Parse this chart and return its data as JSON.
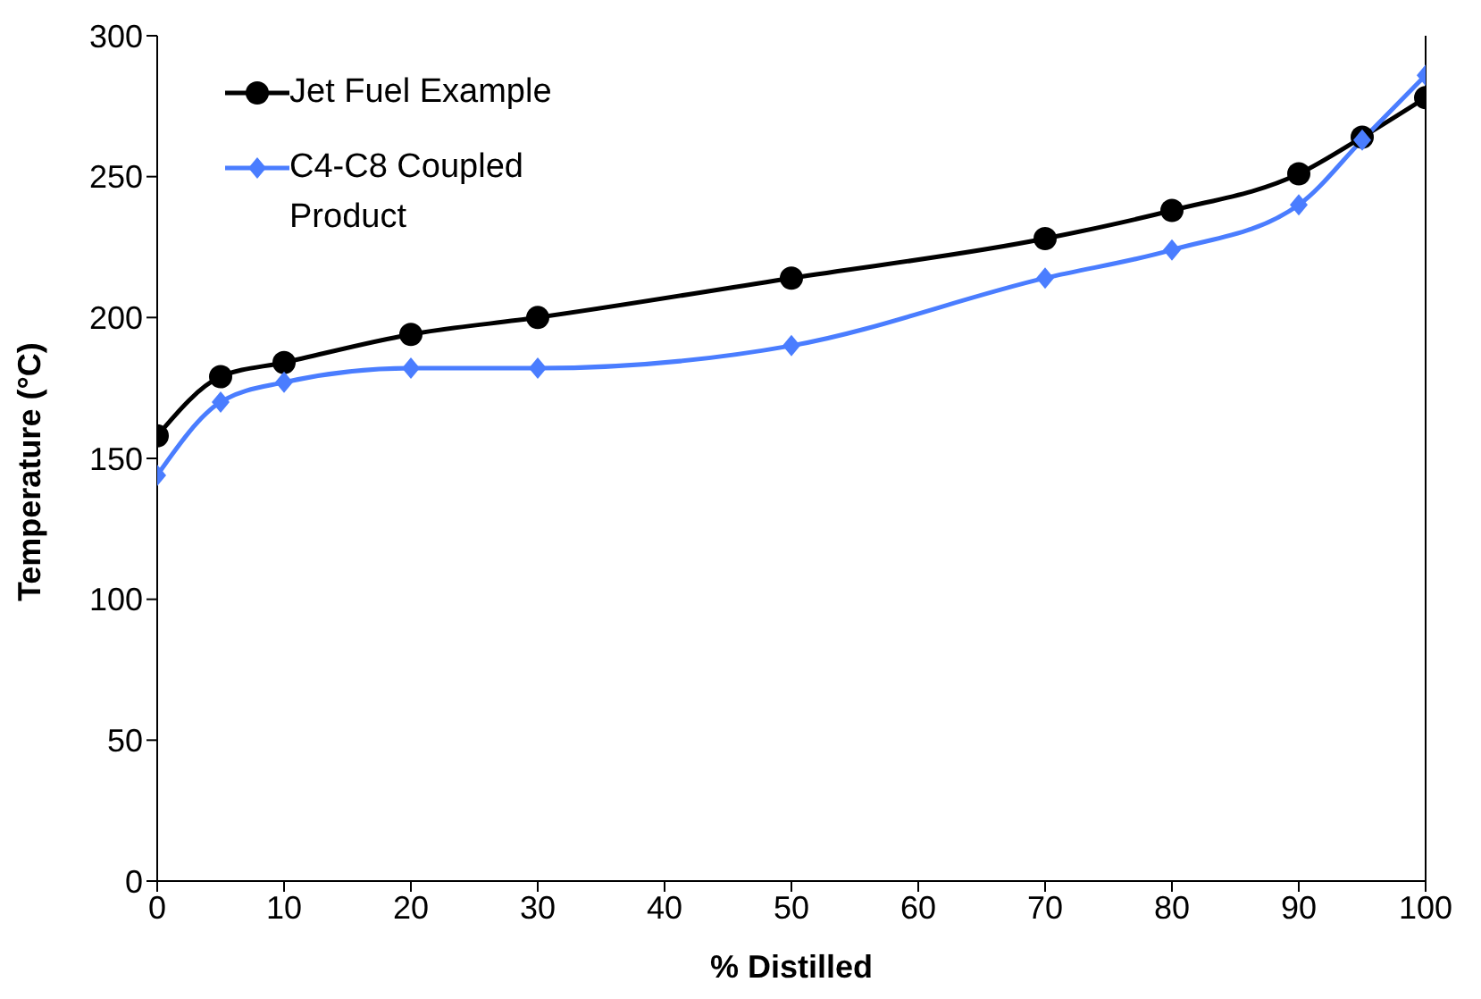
{
  "chart_data": {
    "type": "line",
    "xlabel": "% Distilled",
    "ylabel": "Temperature (°C)",
    "x": [
      0,
      5,
      10,
      20,
      30,
      50,
      70,
      80,
      90,
      95,
      100
    ],
    "series": [
      {
        "name": "Jet Fuel Example",
        "color": "#000000",
        "marker": "circle",
        "values": [
          158,
          179,
          184,
          194,
          200,
          214,
          228,
          238,
          251,
          264,
          278
        ]
      },
      {
        "name": "C4-C8 Coupled Product",
        "color": "#4a7dff",
        "marker": "diamond",
        "values": [
          144,
          170,
          177,
          182,
          182,
          190,
          214,
          224,
          240,
          263,
          286
        ]
      }
    ],
    "xlim": [
      0,
      100
    ],
    "xticks": [
      0,
      10,
      20,
      30,
      40,
      50,
      60,
      70,
      80,
      90,
      100
    ],
    "ylim": [
      0,
      300
    ],
    "yticks": [
      0,
      50,
      100,
      150,
      200,
      250,
      300
    ],
    "grid": false,
    "legend": "top left"
  }
}
